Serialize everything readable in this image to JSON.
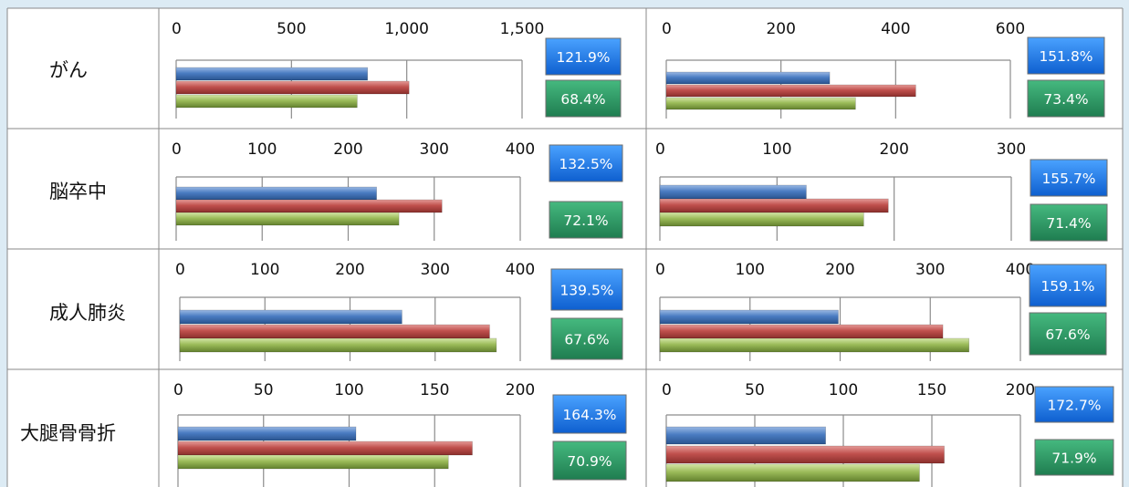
{
  "colors": {
    "series_1": "#4a7cc2",
    "series_2": "#c0504d",
    "series_3": "#9bbb59",
    "blue_badge": "#1f7de6",
    "green_badge": "#2e9a66"
  },
  "rows": [
    {
      "label": "がん"
    },
    {
      "label": "脳卒中"
    },
    {
      "label": "成人肺炎"
    },
    {
      "label": "大腿骨骨折"
    }
  ],
  "chart_data": [
    {
      "type": "bar",
      "orientation": "horizontal",
      "row": "がん",
      "ticks": [
        0,
        500,
        1000,
        1500
      ],
      "tick_labels": [
        "0",
        "500",
        "1,000",
        "1,500"
      ],
      "xlim": [
        0,
        1500
      ],
      "series": [
        {
          "values": [
            830
          ]
        },
        {
          "values": [
            1010
          ]
        },
        {
          "values": [
            785
          ]
        }
      ],
      "ratios": [
        "121.9%",
        "68.4%"
      ]
    },
    {
      "type": "bar",
      "orientation": "horizontal",
      "row": "がん",
      "ticks": [
        0,
        200,
        400,
        600
      ],
      "tick_labels": [
        "0",
        "200",
        "400",
        "600"
      ],
      "xlim": [
        0,
        600
      ],
      "series": [
        {
          "values": [
            285
          ]
        },
        {
          "values": [
            435
          ]
        },
        {
          "values": [
            330
          ]
        }
      ],
      "ratios": [
        "151.8%",
        "73.4%"
      ]
    },
    {
      "type": "bar",
      "orientation": "horizontal",
      "row": "脳卒中",
      "ticks": [
        0,
        100,
        200,
        300,
        400
      ],
      "tick_labels": [
        "0",
        "100",
        "200",
        "300",
        "400"
      ],
      "xlim": [
        0,
        400
      ],
      "series": [
        {
          "values": [
            233
          ]
        },
        {
          "values": [
            309
          ]
        },
        {
          "values": [
            259
          ]
        }
      ],
      "ratios": [
        "132.5%",
        "72.1%"
      ]
    },
    {
      "type": "bar",
      "orientation": "horizontal",
      "row": "脳卒中",
      "ticks": [
        0,
        100,
        200,
        300
      ],
      "tick_labels": [
        "0",
        "100",
        "200",
        "300"
      ],
      "xlim": [
        0,
        300
      ],
      "series": [
        {
          "values": [
            125
          ]
        },
        {
          "values": [
            195
          ]
        },
        {
          "values": [
            174
          ]
        }
      ],
      "ratios": [
        "155.7%",
        "71.4%"
      ]
    },
    {
      "type": "bar",
      "orientation": "horizontal",
      "row": "成人肺炎",
      "ticks": [
        0,
        100,
        200,
        300,
        400
      ],
      "tick_labels": [
        "0",
        "100",
        "200",
        "300",
        "400"
      ],
      "xlim": [
        0,
        400
      ],
      "series": [
        {
          "values": [
            261
          ]
        },
        {
          "values": [
            364
          ]
        },
        {
          "values": [
            372
          ]
        }
      ],
      "ratios": [
        "139.5%",
        "67.6%"
      ]
    },
    {
      "type": "bar",
      "orientation": "horizontal",
      "row": "成人肺炎",
      "ticks": [
        0,
        100,
        200,
        300,
        400
      ],
      "tick_labels": [
        "0",
        "100",
        "200",
        "300",
        "400"
      ],
      "xlim": [
        0,
        400
      ],
      "series": [
        {
          "values": [
            198
          ]
        },
        {
          "values": [
            314
          ]
        },
        {
          "values": [
            343
          ]
        }
      ],
      "ratios": [
        "159.1%",
        "67.6%"
      ]
    },
    {
      "type": "bar",
      "orientation": "horizontal",
      "row": "大腿骨骨折",
      "ticks": [
        0,
        50,
        100,
        150,
        200
      ],
      "tick_labels": [
        "0",
        "50",
        "100",
        "150",
        "200"
      ],
      "xlim": [
        0,
        200
      ],
      "series": [
        {
          "values": [
            104
          ]
        },
        {
          "values": [
            172
          ]
        },
        {
          "values": [
            158
          ]
        }
      ],
      "ratios": [
        "164.3%",
        "70.9%"
      ]
    },
    {
      "type": "bar",
      "orientation": "horizontal",
      "row": "大腿骨骨折",
      "ticks": [
        0,
        50,
        100,
        150,
        200
      ],
      "tick_labels": [
        "0",
        "50",
        "100",
        "150",
        "200"
      ],
      "xlim": [
        0,
        200
      ],
      "series": [
        {
          "values": [
            90
          ]
        },
        {
          "values": [
            157
          ]
        },
        {
          "values": [
            143
          ]
        }
      ],
      "ratios": [
        "172.7%",
        "71.9%"
      ]
    }
  ]
}
